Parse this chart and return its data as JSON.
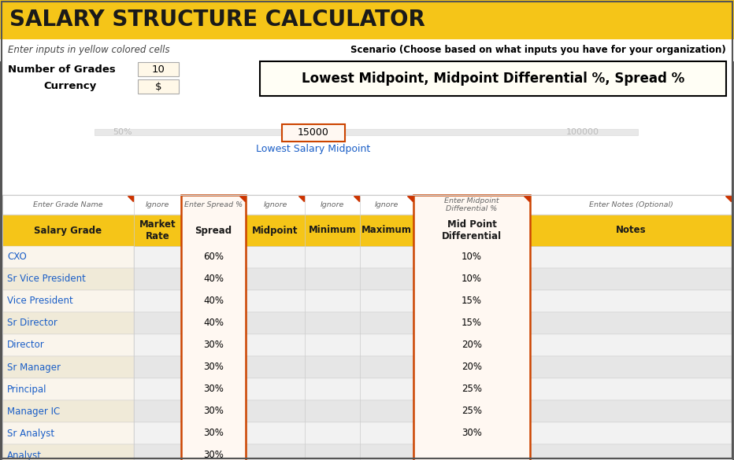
{
  "title": "SALARY STRUCTURE CALCULATOR",
  "title_bg": "#F5C518",
  "title_color": "#1a1a1a",
  "subtitle_italic": "Enter inputs in yellow colored cells",
  "subtitle_color": "#444444",
  "scenario_label": "Scenario (Choose based on what inputs you have for your organization)",
  "scenario_box_text": "Lowest Midpoint, Midpoint Differential %, Spread %",
  "num_grades_label": "Number of Grades",
  "num_grades_value": "10",
  "currency_label": "Currency",
  "currency_value": "$",
  "input_cell_bg": "#FFF8E8",
  "input_box_value": "15000",
  "input_box_label": "Lowest Salary Midpoint",
  "input_box_label_color": "#1a5ec7",
  "slider_left_text": "50%",
  "slider_right_text": "100000",
  "col_headers": [
    "Salary Grade",
    "Market\nRate",
    "Spread",
    "Midpoint",
    "Minimum",
    "Maximum",
    "Mid Point\nDifferential",
    "Notes"
  ],
  "col_header_bg": "#F5C518",
  "col_header_color": "#1a1a1a",
  "row_label_color": "#1a5ec7",
  "hint_row": [
    "Enter Grade Name",
    "Ignore",
    "Enter Spread %",
    "Ignore",
    "Ignore",
    "Ignore",
    "Enter Midpoint\nDifferential %",
    "Enter Notes (Optional)"
  ],
  "hint_color": "#666666",
  "arrow_color": "#cc3300",
  "grades": [
    "CXO",
    "Sr Vice President",
    "Vice President",
    "Sr Director",
    "Director",
    "Sr Manager",
    "Principal",
    "Manager IC",
    "Sr Analyst",
    "Analyst"
  ],
  "spread_values": [
    "60%",
    "40%",
    "40%",
    "40%",
    "30%",
    "30%",
    "30%",
    "30%",
    "30%",
    "30%"
  ],
  "midpoint_diff": [
    "10%",
    "10%",
    "15%",
    "15%",
    "20%",
    "20%",
    "25%",
    "25%",
    "30%",
    ""
  ],
  "row_bg_light": "#f2f2f2",
  "row_bg_dark": "#e6e6e6",
  "grade_bg_light": "#faf5ec",
  "grade_bg_dark": "#f0ead8",
  "border_color": "#cccccc",
  "orange_border": "#cc4400",
  "outer_border": "#555555",
  "bg_color": "#ffffff",
  "scen_box_bg": "#fffef5"
}
